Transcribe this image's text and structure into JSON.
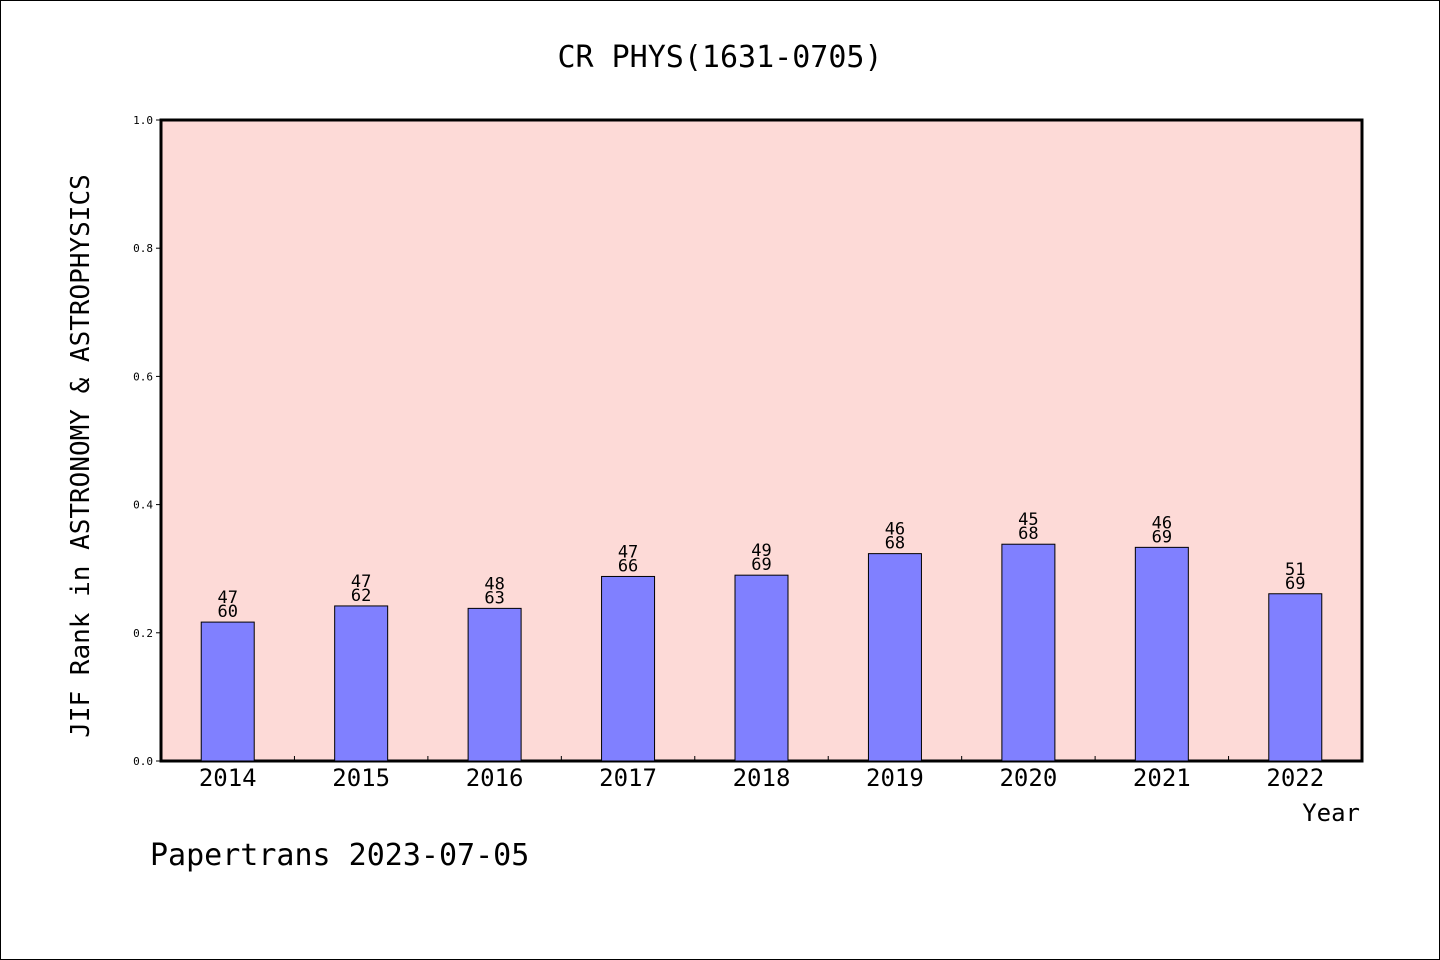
{
  "chart_data": {
    "type": "bar",
    "title": "CR PHYS(1631-0705)",
    "xlabel": "Year",
    "ylabel": "JIF Rank in ASTRONOMY & ASTROPHYSICS",
    "categories": [
      "2014",
      "2015",
      "2016",
      "2017",
      "2018",
      "2019",
      "2020",
      "2021",
      "2022"
    ],
    "values": [
      0.2167,
      0.2419,
      0.2381,
      0.2879,
      0.2899,
      0.3235,
      0.3382,
      0.3333,
      0.2609
    ],
    "labels_top": [
      "47",
      "47",
      "48",
      "47",
      "49",
      "46",
      "45",
      "46",
      "51"
    ],
    "labels_bottom": [
      "60",
      "62",
      "63",
      "66",
      "69",
      "68",
      "68",
      "69",
      "69"
    ],
    "yticks": [
      "0.0",
      "0.2",
      "0.4",
      "0.6",
      "0.8",
      "1.0"
    ],
    "ylim": [
      0,
      1
    ],
    "grid": false,
    "colors": {
      "plot_bg": "#fddad7",
      "bar": "#8080ff",
      "bar_edge": "#000000"
    }
  },
  "footer": {
    "text": "Papertrans 2023-07-05"
  }
}
